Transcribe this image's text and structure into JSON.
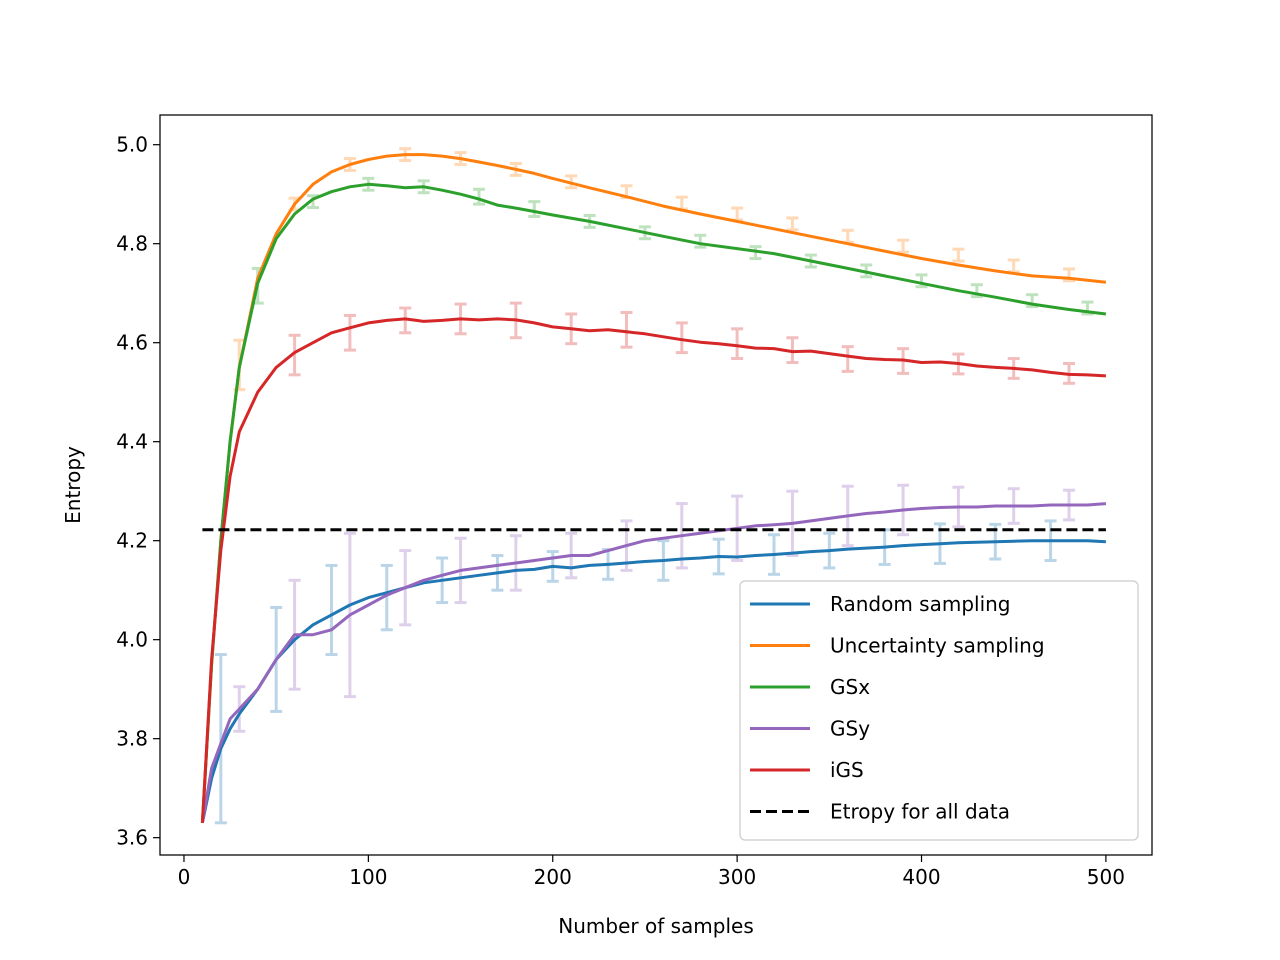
{
  "chart_data": {
    "type": "line",
    "title": "",
    "xlabel": "Number of samples",
    "ylabel": "Entropy",
    "xlim": [
      -13,
      525
    ],
    "ylim": [
      3.565,
      5.06
    ],
    "x_ticks": [
      0,
      100,
      200,
      300,
      400,
      500
    ],
    "x_tick_labels": [
      "0",
      "100",
      "200",
      "300",
      "400",
      "500"
    ],
    "y_ticks": [
      3.6,
      3.8,
      4.0,
      4.2,
      4.4,
      4.6,
      4.8,
      5.0
    ],
    "y_tick_labels": [
      "3.6",
      "3.8",
      "4.0",
      "4.2",
      "4.4",
      "4.6",
      "4.8",
      "5.0"
    ],
    "grid": false,
    "legend_position": "lower-right",
    "series": [
      {
        "name": "Random sampling",
        "color": "#1f77b4",
        "x": [
          10,
          15,
          20,
          25,
          30,
          40,
          50,
          60,
          70,
          80,
          90,
          100,
          110,
          120,
          130,
          140,
          150,
          160,
          170,
          180,
          190,
          200,
          210,
          220,
          230,
          240,
          250,
          260,
          270,
          280,
          290,
          300,
          310,
          320,
          330,
          340,
          350,
          360,
          370,
          380,
          390,
          400,
          410,
          420,
          430,
          440,
          450,
          460,
          470,
          480,
          490,
          500
        ],
        "y": [
          3.63,
          3.72,
          3.78,
          3.82,
          3.85,
          3.9,
          3.96,
          4.0,
          4.03,
          4.05,
          4.07,
          4.085,
          4.095,
          4.105,
          4.115,
          4.12,
          4.125,
          4.13,
          4.135,
          4.14,
          4.142,
          4.148,
          4.145,
          4.15,
          4.152,
          4.155,
          4.158,
          4.16,
          4.163,
          4.165,
          4.168,
          4.167,
          4.17,
          4.172,
          4.175,
          4.178,
          4.18,
          4.183,
          4.185,
          4.187,
          4.19,
          4.192,
          4.194,
          4.196,
          4.197,
          4.198,
          4.199,
          4.2,
          4.2,
          4.2,
          4.2,
          4.198
        ],
        "error_x": [
          20,
          50,
          80,
          110,
          140,
          170,
          200,
          230,
          260,
          290,
          320,
          350,
          380,
          410,
          440,
          470
        ],
        "error_y": [
          3.8,
          3.96,
          4.06,
          4.085,
          4.12,
          4.135,
          4.148,
          4.152,
          4.16,
          4.168,
          4.172,
          4.18,
          4.187,
          4.194,
          4.198,
          4.2
        ],
        "error_size": [
          0.17,
          0.105,
          0.09,
          0.065,
          0.045,
          0.035,
          0.03,
          0.03,
          0.04,
          0.035,
          0.04,
          0.035,
          0.035,
          0.04,
          0.035,
          0.04
        ]
      },
      {
        "name": "Uncertainty sampling",
        "color": "#ff7f0e",
        "x": [
          10,
          15,
          20,
          25,
          30,
          40,
          50,
          60,
          70,
          80,
          90,
          100,
          110,
          120,
          130,
          140,
          150,
          160,
          170,
          180,
          190,
          200,
          220,
          240,
          260,
          280,
          300,
          320,
          340,
          360,
          380,
          400,
          420,
          440,
          460,
          480,
          500
        ],
        "y": [
          3.63,
          3.95,
          4.2,
          4.4,
          4.55,
          4.73,
          4.82,
          4.88,
          4.92,
          4.945,
          4.96,
          4.97,
          4.977,
          4.98,
          4.98,
          4.977,
          4.972,
          4.965,
          4.958,
          4.95,
          4.942,
          4.932,
          4.913,
          4.895,
          4.876,
          4.86,
          4.845,
          4.83,
          4.815,
          4.8,
          4.785,
          4.77,
          4.757,
          4.745,
          4.735,
          4.73,
          4.722
        ],
        "error_x": [
          30,
          60,
          90,
          120,
          150,
          180,
          210,
          240,
          270,
          300,
          330,
          360,
          390,
          420,
          450,
          480
        ],
        "error_y": [
          4.555,
          4.88,
          4.96,
          4.98,
          4.972,
          4.95,
          4.925,
          4.905,
          4.882,
          4.86,
          4.84,
          4.815,
          4.795,
          4.777,
          4.755,
          4.737
        ],
        "error_size": [
          0.05,
          0.012,
          0.012,
          0.012,
          0.012,
          0.012,
          0.012,
          0.012,
          0.012,
          0.012,
          0.012,
          0.012,
          0.012,
          0.012,
          0.012,
          0.012
        ]
      },
      {
        "name": "GSx",
        "color": "#2ca02c",
        "x": [
          10,
          15,
          20,
          25,
          30,
          40,
          50,
          60,
          70,
          80,
          90,
          100,
          110,
          120,
          130,
          140,
          150,
          160,
          170,
          180,
          190,
          200,
          220,
          240,
          260,
          280,
          300,
          320,
          340,
          360,
          380,
          400,
          420,
          440,
          460,
          480,
          500
        ],
        "y": [
          3.63,
          3.95,
          4.2,
          4.4,
          4.55,
          4.72,
          4.81,
          4.86,
          4.89,
          4.905,
          4.915,
          4.92,
          4.917,
          4.913,
          4.915,
          4.908,
          4.9,
          4.89,
          4.878,
          4.872,
          4.865,
          4.858,
          4.845,
          4.83,
          4.815,
          4.8,
          4.79,
          4.78,
          4.765,
          4.75,
          4.735,
          4.72,
          4.705,
          4.692,
          4.678,
          4.667,
          4.658
        ],
        "error_x": [
          40,
          70,
          100,
          130,
          160,
          190,
          220,
          250,
          280,
          310,
          340,
          370,
          400,
          430,
          460,
          490
        ],
        "error_y": [
          4.715,
          4.885,
          4.92,
          4.915,
          4.895,
          4.87,
          4.845,
          4.822,
          4.805,
          4.782,
          4.765,
          4.745,
          4.725,
          4.705,
          4.685,
          4.67
        ],
        "error_size": [
          0.035,
          0.012,
          0.012,
          0.012,
          0.015,
          0.015,
          0.012,
          0.012,
          0.012,
          0.012,
          0.012,
          0.012,
          0.012,
          0.012,
          0.012,
          0.012
        ]
      },
      {
        "name": "GSy",
        "color": "#9467bd",
        "x": [
          10,
          15,
          20,
          25,
          30,
          40,
          50,
          60,
          70,
          80,
          90,
          100,
          110,
          120,
          130,
          140,
          150,
          160,
          170,
          180,
          190,
          200,
          210,
          220,
          230,
          240,
          250,
          260,
          270,
          280,
          290,
          300,
          310,
          320,
          330,
          340,
          350,
          360,
          370,
          380,
          390,
          400,
          410,
          420,
          430,
          440,
          450,
          460,
          470,
          480,
          490,
          500
        ],
        "y": [
          3.63,
          3.74,
          3.79,
          3.84,
          3.86,
          3.9,
          3.96,
          4.01,
          4.01,
          4.02,
          4.05,
          4.07,
          4.09,
          4.105,
          4.12,
          4.13,
          4.14,
          4.145,
          4.15,
          4.155,
          4.16,
          4.165,
          4.17,
          4.17,
          4.18,
          4.19,
          4.2,
          4.205,
          4.21,
          4.215,
          4.22,
          4.225,
          4.23,
          4.232,
          4.235,
          4.24,
          4.245,
          4.25,
          4.255,
          4.258,
          4.262,
          4.265,
          4.267,
          4.268,
          4.268,
          4.27,
          4.27,
          4.27,
          4.272,
          4.272,
          4.272,
          4.275
        ],
        "error_x": [
          30,
          60,
          90,
          120,
          150,
          180,
          210,
          240,
          270,
          300,
          330,
          360,
          390,
          420,
          450,
          480
        ],
        "error_y": [
          3.86,
          4.01,
          4.05,
          4.105,
          4.14,
          4.155,
          4.17,
          4.19,
          4.21,
          4.225,
          4.235,
          4.25,
          4.262,
          4.268,
          4.27,
          4.272
        ],
        "error_size": [
          0.045,
          0.11,
          0.165,
          0.075,
          0.065,
          0.055,
          0.045,
          0.05,
          0.065,
          0.065,
          0.065,
          0.06,
          0.05,
          0.04,
          0.035,
          0.03
        ]
      },
      {
        "name": "iGS",
        "color": "#d62728",
        "x": [
          10,
          15,
          20,
          25,
          30,
          40,
          50,
          60,
          70,
          80,
          90,
          100,
          110,
          120,
          130,
          140,
          150,
          160,
          170,
          180,
          190,
          200,
          210,
          220,
          230,
          240,
          250,
          260,
          270,
          280,
          290,
          300,
          310,
          320,
          330,
          340,
          350,
          360,
          370,
          380,
          390,
          400,
          410,
          420,
          430,
          440,
          450,
          460,
          470,
          480,
          490,
          500
        ],
        "y": [
          3.63,
          3.96,
          4.18,
          4.33,
          4.42,
          4.5,
          4.55,
          4.58,
          4.6,
          4.62,
          4.63,
          4.64,
          4.645,
          4.648,
          4.643,
          4.645,
          4.648,
          4.646,
          4.648,
          4.646,
          4.64,
          4.632,
          4.628,
          4.624,
          4.626,
          4.622,
          4.618,
          4.612,
          4.606,
          4.601,
          4.598,
          4.594,
          4.589,
          4.588,
          4.582,
          4.583,
          4.578,
          4.573,
          4.568,
          4.566,
          4.565,
          4.56,
          4.561,
          4.558,
          4.553,
          4.55,
          4.548,
          4.545,
          4.54,
          4.536,
          4.535,
          4.533
        ],
        "error_x": [
          60,
          90,
          120,
          150,
          180,
          210,
          240,
          270,
          300,
          330,
          360,
          390,
          420,
          450,
          480
        ],
        "error_y": [
          4.575,
          4.62,
          4.645,
          4.648,
          4.645,
          4.628,
          4.626,
          4.61,
          4.598,
          4.585,
          4.567,
          4.563,
          4.557,
          4.548,
          4.538
        ],
        "error_size": [
          0.04,
          0.035,
          0.025,
          0.03,
          0.035,
          0.03,
          0.035,
          0.03,
          0.03,
          0.025,
          0.025,
          0.025,
          0.02,
          0.02,
          0.02
        ]
      }
    ],
    "reference_line": {
      "name": "Etropy for all data",
      "color": "#000000",
      "style": "dashed",
      "y": 4.222,
      "x_range": [
        10,
        500
      ]
    }
  }
}
